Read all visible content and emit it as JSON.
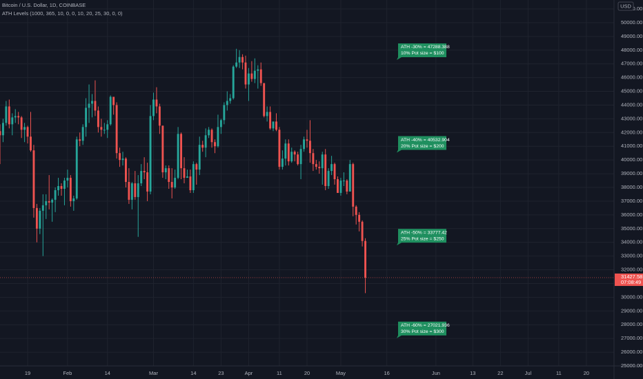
{
  "chart_data": {
    "type": "candlestick",
    "title": "Bitcoin / U.S. Dollar, 1D, COINBASE",
    "subtitle": "ATH Levels (1000, 365, 10, 0, 0, 10, 20, 25, 30, 0, 0)",
    "currency": "USD",
    "countdown": "07:08:49",
    "up_color": "#26a69a",
    "down_color": "#ef5350",
    "grid": true,
    "x": [
      "Jan 10",
      "Jan 11",
      "Jan 12",
      "Jan 13",
      "Jan 14",
      "Jan 15",
      "Jan 16",
      "Jan 17",
      "Jan 18",
      "Jan 19",
      "Jan 20",
      "Jan 21",
      "Jan 22",
      "Jan 23",
      "Jan 24",
      "Jan 25",
      "Jan 26",
      "Jan 27",
      "Jan 28",
      "Jan 29",
      "Jan 30",
      "Jan 31",
      "Feb 1",
      "Feb 2",
      "Feb 3",
      "Feb 4",
      "Feb 5",
      "Feb 6",
      "Feb 7",
      "Feb 8",
      "Feb 9",
      "Feb 10",
      "Feb 11",
      "Feb 12",
      "Feb 13",
      "Feb 14",
      "Feb 15",
      "Feb 16",
      "Feb 17",
      "Feb 18",
      "Feb 19",
      "Feb 20",
      "Feb 21",
      "Feb 22",
      "Feb 23",
      "Feb 24",
      "Feb 25",
      "Feb 26",
      "Feb 27",
      "Feb 28",
      "Mar 1",
      "Mar 2",
      "Mar 3",
      "Mar 4",
      "Mar 5",
      "Mar 6",
      "Mar 7",
      "Mar 8",
      "Mar 9",
      "Mar 10",
      "Mar 11",
      "Mar 12",
      "Mar 13",
      "Mar 14",
      "Mar 15",
      "Mar 16",
      "Mar 17",
      "Mar 18",
      "Mar 19",
      "Mar 20",
      "Mar 21",
      "Mar 22",
      "Mar 23",
      "Mar 24",
      "Mar 25",
      "Mar 26",
      "Mar 27",
      "Mar 28",
      "Mar 29",
      "Mar 30",
      "Mar 31",
      "Apr 1",
      "Apr 2",
      "Apr 3",
      "Apr 4",
      "Apr 5",
      "Apr 6",
      "Apr 7",
      "Apr 8",
      "Apr 9",
      "Apr 10",
      "Apr 11",
      "Apr 12",
      "Apr 13",
      "Apr 14",
      "Apr 15",
      "Apr 16",
      "Apr 17",
      "Apr 18",
      "Apr 19",
      "Apr 20",
      "Apr 21",
      "Apr 22",
      "Apr 23",
      "Apr 24",
      "Apr 25",
      "Apr 26",
      "Apr 27",
      "Apr 28",
      "Apr 29",
      "Apr 30",
      "May 1",
      "May 2",
      "May 3",
      "May 4",
      "May 5",
      "May 6",
      "May 7",
      "May 8",
      "May 9"
    ],
    "open": [
      42100,
      41800,
      42700,
      43900,
      42600,
      43100,
      43200,
      43100,
      42200,
      42400,
      41700,
      40700,
      36500,
      35000,
      36300,
      36700,
      37000,
      36900,
      37100,
      37800,
      38100,
      37900,
      38500,
      38700,
      37000,
      37200,
      41500,
      41400,
      42400,
      43800,
      44100,
      44300,
      43600,
      42400,
      42200,
      42200,
      42600,
      44600,
      44000,
      40500,
      40000,
      40100,
      38400,
      37100,
      38300,
      37300,
      38300,
      39200,
      39100,
      37700,
      43200,
      44400,
      43900,
      42500,
      39100,
      39400,
      38400,
      38000,
      38700,
      41900,
      39400,
      38700,
      38800,
      37800,
      39700,
      39300,
      41100,
      40900,
      41800,
      42200,
      41300,
      41000,
      42400,
      42900,
      44000,
      44300,
      44500,
      46800,
      47100,
      47500,
      47100,
      45500,
      46300,
      45900,
      46500,
      46600,
      45600,
      43200,
      43500,
      42300,
      42800,
      42200,
      39500,
      40100,
      41200,
      39900,
      40600,
      40400,
      39700,
      40800,
      41500,
      41400,
      40500,
      39700,
      39500,
      39400,
      40400,
      38100,
      39200,
      39700,
      38600,
      37600,
      38500,
      38500,
      37700,
      39700,
      36600,
      36000,
      35500,
      34100
    ],
    "high": [
      42600,
      43000,
      44300,
      44400,
      43400,
      43700,
      43500,
      43200,
      42700,
      42500,
      43500,
      41100,
      36800,
      36500,
      37500,
      37500,
      38900,
      37200,
      38000,
      38700,
      38300,
      38700,
      39300,
      38900,
      37400,
      41700,
      42000,
      42600,
      44500,
      45500,
      44800,
      45800,
      43900,
      43000,
      42700,
      42900,
      44700,
      44600,
      44200,
      40900,
      40600,
      40200,
      39400,
      38400,
      39200,
      38900,
      39700,
      40200,
      39800,
      44000,
      44900,
      45300,
      44100,
      42500,
      39600,
      39600,
      39400,
      39300,
      42400,
      42000,
      40200,
      39300,
      39300,
      39900,
      39800,
      41700,
      41400,
      42300,
      42400,
      42300,
      41500,
      43300,
      43000,
      44200,
      45000,
      44800,
      46900,
      48100,
      48000,
      47700,
      47600,
      46700,
      47200,
      47400,
      46900,
      47100,
      45600,
      43900,
      43900,
      42800,
      43400,
      42400,
      40700,
      41500,
      41500,
      40900,
      40700,
      40600,
      41100,
      41700,
      42200,
      42900,
      40800,
      40000,
      39900,
      40600,
      40800,
      39400,
      40300,
      39800,
      38800,
      38700,
      39100,
      38600,
      40000,
      39800,
      36700,
      36200,
      35600,
      34300
    ],
    "low": [
      39700,
      41300,
      42500,
      42300,
      41800,
      42700,
      42600,
      41600,
      41300,
      41200,
      40600,
      35800,
      34000,
      34600,
      33000,
      35700,
      36400,
      35500,
      36200,
      37400,
      37400,
      36700,
      38000,
      36600,
      36300,
      37100,
      41000,
      41100,
      41700,
      42700,
      43100,
      43200,
      42000,
      41700,
      41900,
      41600,
      42500,
      43300,
      40100,
      39500,
      39600,
      38000,
      36800,
      36400,
      37100,
      34400,
      38100,
      38600,
      37000,
      37500,
      42900,
      43400,
      41900,
      38700,
      38600,
      37900,
      37200,
      37900,
      38600,
      38600,
      38300,
      38700,
      37600,
      37600,
      38200,
      38900,
      40600,
      40200,
      41600,
      40900,
      40500,
      40900,
      41900,
      42600,
      43600,
      44100,
      44400,
      46700,
      46700,
      46600,
      45200,
      44300,
      45700,
      45600,
      45200,
      45400,
      43100,
      42800,
      42200,
      42100,
      42100,
      39300,
      39300,
      39600,
      39600,
      39800,
      39900,
      39600,
      38600,
      40600,
      40900,
      39800,
      39200,
      39300,
      39000,
      38200,
      37800,
      37900,
      38900,
      38200,
      37600,
      37400,
      38100,
      37500,
      37700,
      35900,
      35300,
      34800,
      33700,
      30300
    ],
    "close": [
      41800,
      42700,
      43900,
      42600,
      43100,
      43200,
      43100,
      42200,
      42400,
      41700,
      40700,
      36500,
      35000,
      36300,
      36700,
      37000,
      36900,
      37100,
      37800,
      38100,
      37900,
      38500,
      38700,
      37000,
      37200,
      41500,
      41400,
      42400,
      43800,
      44100,
      44300,
      43600,
      42400,
      42200,
      42200,
      42600,
      44600,
      44000,
      40500,
      40000,
      40100,
      38400,
      37100,
      38300,
      37300,
      38300,
      39200,
      39100,
      37700,
      43200,
      44400,
      43900,
      42500,
      39100,
      39400,
      38400,
      38000,
      38700,
      41900,
      39400,
      38700,
      38800,
      37800,
      39700,
      39300,
      41100,
      40900,
      41800,
      42200,
      41300,
      41000,
      42400,
      42900,
      44000,
      44300,
      44500,
      46800,
      47100,
      47500,
      47100,
      45500,
      46300,
      45900,
      46500,
      46600,
      45600,
      43200,
      43500,
      42300,
      42800,
      42200,
      39500,
      40100,
      41200,
      39900,
      40600,
      40400,
      39700,
      40800,
      41500,
      41400,
      40500,
      39700,
      39500,
      39400,
      40400,
      38100,
      39200,
      39700,
      38600,
      37600,
      38500,
      38500,
      37700,
      39700,
      36600,
      36000,
      35500,
      34100,
      31427.58
    ],
    "xlim": [
      "Jan 10",
      "Jul 29"
    ],
    "xticks": [
      {
        "value": "Jan 19",
        "label": "19"
      },
      {
        "value": "Feb 1",
        "label": "Feb"
      },
      {
        "value": "Feb 14",
        "label": "14"
      },
      {
        "value": "Mar 1",
        "label": "Mar"
      },
      {
        "value": "Mar 14",
        "label": "14"
      },
      {
        "value": "Mar 23",
        "label": "23"
      },
      {
        "value": "Apr 1",
        "label": "Apr"
      },
      {
        "value": "Apr 11",
        "label": "11"
      },
      {
        "value": "Apr 20",
        "label": "20"
      },
      {
        "value": "May 1",
        "label": "May"
      },
      {
        "value": "May 16",
        "label": "16"
      },
      {
        "value": "Jun 1",
        "label": "Jun"
      },
      {
        "value": "Jun 13",
        "label": "13"
      },
      {
        "value": "Jun 22",
        "label": "22"
      },
      {
        "value": "Jul 1",
        "label": "Jul"
      },
      {
        "value": "Jul 11",
        "label": "11"
      },
      {
        "value": "Jul 20",
        "label": "20"
      }
    ],
    "ylim": [
      25000,
      51000
    ],
    "yticks": [
      {
        "value": 25000,
        "label": "25000.00"
      },
      {
        "value": 26000,
        "label": "26000.00"
      },
      {
        "value": 27000,
        "label": "27000.00"
      },
      {
        "value": 28000,
        "label": "28000.00"
      },
      {
        "value": 29000,
        "label": "29000.00"
      },
      {
        "value": 30000,
        "label": "30000.00"
      },
      {
        "value": 31000,
        "label": "31000.00"
      },
      {
        "value": 32000,
        "label": "32000.00"
      },
      {
        "value": 33000,
        "label": "33000.00"
      },
      {
        "value": 34000,
        "label": "34000.00"
      },
      {
        "value": 35000,
        "label": "35000.00"
      },
      {
        "value": 36000,
        "label": "36000.00"
      },
      {
        "value": 37000,
        "label": "37000.00"
      },
      {
        "value": 38000,
        "label": "38000.00"
      },
      {
        "value": 39000,
        "label": "39000.00"
      },
      {
        "value": 40000,
        "label": "40000.00"
      },
      {
        "value": 41000,
        "label": "41000.00"
      },
      {
        "value": 42000,
        "label": "42000.00"
      },
      {
        "value": 43000,
        "label": "43000.00"
      },
      {
        "value": 44000,
        "label": "44000.00"
      },
      {
        "value": 45000,
        "label": "45000.00"
      },
      {
        "value": 46000,
        "label": "46000.00"
      },
      {
        "value": 47000,
        "label": "47000.00"
      },
      {
        "value": 48000,
        "label": "48000.00"
      },
      {
        "value": 49000,
        "label": "49000.00"
      },
      {
        "value": 50000,
        "label": "50000.00"
      },
      {
        "value": 51000,
        "label": "51000.00"
      }
    ],
    "annotations": [
      {
        "value": 47288.388,
        "lines": [
          "ATH -30% = 47288.388",
          "10% Pot size = $100"
        ]
      },
      {
        "value": 40532.904,
        "lines": [
          "ATH -40% = 40532.904",
          "20% Pot size = $200"
        ]
      },
      {
        "value": 33777.42,
        "lines": [
          "ATH -50% = 33777.42",
          "25% Pot size = $250"
        ]
      },
      {
        "value": 27021.936,
        "lines": [
          "ATH -60% = 27021.936",
          "30% Pot size = $300"
        ]
      }
    ],
    "annotation_color": "#1f8f5f"
  }
}
